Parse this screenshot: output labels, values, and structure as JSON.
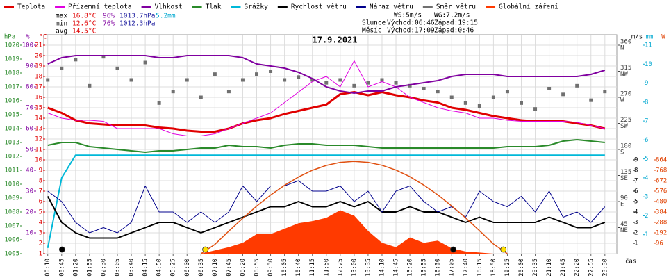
{
  "chart_data": {
    "type": "line",
    "title": "17.9.2021",
    "x_label": "čas",
    "categories": [
      "00:10",
      "00:45",
      "01:20",
      "01:55",
      "02:30",
      "03:05",
      "03:40",
      "04:15",
      "04:50",
      "05:25",
      "06:00",
      "06:35",
      "07:10",
      "07:45",
      "08:20",
      "08:55",
      "09:30",
      "10:05",
      "10:40",
      "11:15",
      "11:50",
      "12:25",
      "13:00",
      "13:35",
      "14:10",
      "14:45",
      "15:20",
      "15:55",
      "16:30",
      "17:05",
      "17:40",
      "18:15",
      "18:50",
      "19:25",
      "20:00",
      "20:35",
      "21:10",
      "21:45",
      "22:20",
      "22:55",
      "23:30"
    ],
    "grid": true,
    "axes": {
      "hpa": {
        "label": "hPa",
        "color": "#2a8a2a",
        "lim": [
          1005,
          1020
        ],
        "ticks": [
          1005,
          1006,
          1007,
          1008,
          1009,
          1010,
          1011,
          1012,
          1013,
          1014,
          1015,
          1016,
          1017,
          1018,
          1019,
          1020
        ]
      },
      "pct": {
        "label": "%",
        "color": "#8000a0",
        "lim": [
          0,
          100
        ],
        "ticks": [
          10,
          20,
          30,
          40,
          50,
          60,
          70,
          80,
          90,
          100
        ]
      },
      "temp": {
        "label": "°C",
        "color": "#e00000",
        "lim": [
          1,
          21
        ],
        "ticks": [
          1,
          2,
          3,
          4,
          5,
          6,
          7,
          8,
          9,
          10,
          11,
          12,
          13,
          14,
          15,
          16,
          17,
          18,
          19,
          20,
          21
        ]
      },
      "deg": {
        "color": "#404040",
        "lim": [
          0,
          360
        ],
        "ticks": [
          {
            "value": 45,
            "label": "45",
            "dir": "NE"
          },
          {
            "value": 90,
            "label": "90",
            "dir": "E"
          },
          {
            "value": 135,
            "label": "135",
            "dir": "SE"
          },
          {
            "value": 180,
            "label": "180",
            "dir": "S"
          },
          {
            "value": 225,
            "label": "225",
            "dir": "SW"
          },
          {
            "value": 270,
            "label": "270",
            "dir": "W"
          },
          {
            "value": 315,
            "label": "315",
            "dir": "NW"
          },
          {
            "value": 360,
            "label": "360",
            "dir": "N"
          }
        ]
      },
      "ms": {
        "label": "m/s",
        "color": "#000000",
        "lim": [
          0,
          20
        ],
        "ticks": [
          1,
          2,
          3,
          4,
          5,
          6,
          7,
          8,
          9
        ]
      },
      "mm": {
        "label": "mm",
        "color": "#00a8d0",
        "lim": [
          0,
          11
        ],
        "ticks": [
          1,
          2,
          3,
          4,
          5,
          6,
          7,
          8,
          9,
          10,
          11
        ]
      },
      "w": {
        "label": "W",
        "color": "#e04000",
        "lim": [
          0,
          1920
        ],
        "ticks": [
          96,
          192,
          288,
          384,
          480,
          576,
          672,
          768,
          864
        ]
      }
    },
    "series": [
      {
        "name": "Teplota",
        "color": "#e00000",
        "axis": "temp",
        "mark": "line",
        "width": 3,
        "values": [
          15,
          14.5,
          13.8,
          13.5,
          13.4,
          13.3,
          13.3,
          13.3,
          13.1,
          13,
          12.8,
          12.7,
          12.7,
          13,
          13.5,
          13.8,
          14,
          14.4,
          14.7,
          15,
          15.3,
          16.3,
          16.5,
          16.2,
          16.5,
          16.2,
          16,
          15.7,
          15.5,
          15,
          14.8,
          14.5,
          14.2,
          14,
          13.8,
          13.7,
          13.7,
          13.7,
          13.5,
          13.3,
          13
        ]
      },
      {
        "name": "Přízemní teplota",
        "color": "#e000e0",
        "axis": "temp",
        "mark": "line",
        "width": 1,
        "values": [
          14.5,
          14,
          13.8,
          13.8,
          13.7,
          13,
          13,
          13,
          13,
          12.5,
          12.3,
          12.3,
          12.5,
          13,
          13.5,
          14,
          14.5,
          15.5,
          16.5,
          17.5,
          18,
          17,
          19.5,
          17,
          17.5,
          17,
          16,
          15.5,
          15,
          14.7,
          14.5,
          14,
          14,
          13.8,
          13.7,
          13.7,
          13.7,
          13.7,
          13.6,
          13.3,
          13
        ]
      },
      {
        "name": "Vlhkost",
        "color": "#8000a0",
        "axis": "pct",
        "mark": "line",
        "width": 2,
        "values": [
          91,
          94,
          95,
          95,
          95,
          95,
          95,
          95,
          94,
          94,
          95,
          95,
          95,
          95,
          94,
          91,
          90,
          89,
          87,
          84,
          80,
          78,
          77,
          78,
          78,
          80,
          81,
          82,
          83,
          85,
          86,
          86,
          86,
          85,
          85,
          85,
          85,
          85,
          85,
          86,
          88
        ]
      },
      {
        "name": "Tlak",
        "color": "#2a8a2a",
        "axis": "hpa",
        "mark": "line",
        "width": 2,
        "values": [
          1012.8,
          1013,
          1013,
          1012.7,
          1012.6,
          1012.5,
          1012.4,
          1012.3,
          1012.4,
          1012.4,
          1012.5,
          1012.6,
          1012.6,
          1012.8,
          1012.7,
          1012.7,
          1012.6,
          1012.8,
          1012.9,
          1012.9,
          1012.8,
          1012.8,
          1012.8,
          1012.7,
          1012.6,
          1012.6,
          1012.6,
          1012.6,
          1012.6,
          1012.6,
          1012.6,
          1012.6,
          1012.6,
          1012.7,
          1012.7,
          1012.7,
          1012.8,
          1013.1,
          1013.2,
          1013.1,
          1013
        ]
      },
      {
        "name": "Srážky",
        "color": "#00b8d8",
        "axis": "mm",
        "mark": "line",
        "width": 2,
        "values": [
          0.3,
          4,
          5.2,
          5.2,
          5.2,
          5.2,
          5.2,
          5.2,
          5.2,
          5.2,
          5.2,
          5.2,
          5.2,
          5.2,
          5.2,
          5.2,
          5.2,
          5.2,
          5.2,
          5.2,
          5.2,
          5.2,
          5.2,
          5.2,
          5.2,
          5.2,
          5.2,
          5.2,
          5.2,
          5.2,
          5.2,
          5.2,
          5.2,
          5.2,
          5.2,
          5.2,
          5.2,
          5.2,
          5.2,
          5.2,
          5.2
        ]
      },
      {
        "name": "Rychlost větru",
        "color": "#000000",
        "axis": "ms",
        "mark": "line",
        "width": 2,
        "values": [
          5.5,
          3,
          2,
          1.5,
          1.5,
          1.5,
          2,
          2.5,
          3,
          3,
          2.5,
          2,
          2.5,
          3,
          3.5,
          4,
          4.5,
          4.5,
          5,
          4.5,
          4.5,
          5,
          4.5,
          5,
          4,
          4,
          4.5,
          4,
          4,
          3.5,
          3,
          3.5,
          3,
          3,
          3,
          3,
          3.5,
          3,
          2.5,
          2.5,
          3
        ]
      },
      {
        "name": "Náraz větru",
        "color": "#00008c",
        "axis": "ms",
        "mark": "line",
        "width": 1,
        "values": [
          6,
          5,
          3,
          2,
          2.5,
          2,
          3,
          6.5,
          4,
          4,
          3,
          4,
          3,
          4,
          6.5,
          5,
          6.5,
          6.5,
          7,
          6,
          6,
          6.5,
          5,
          6,
          4,
          6,
          6.5,
          5,
          4,
          4.5,
          3.5,
          6,
          5,
          4.5,
          5.5,
          4,
          6,
          3.5,
          4,
          3,
          4.5
        ]
      },
      {
        "name": "Směr větru",
        "color": "#707070",
        "axis": "deg",
        "mark": "points",
        "values": [
          300,
          320,
          335,
          290,
          340,
          320,
          300,
          330,
          260,
          280,
          300,
          270,
          310,
          280,
          300,
          310,
          315,
          300,
          305,
          300,
          295,
          300,
          290,
          295,
          300,
          295,
          290,
          285,
          280,
          270,
          260,
          255,
          270,
          280,
          260,
          250,
          285,
          275,
          290,
          265,
          280
        ]
      },
      {
        "name": "Globální záření",
        "color": "#ff3a00",
        "axis": "w",
        "mark": "area",
        "values": [
          0,
          0,
          0,
          0,
          0,
          0,
          0,
          0,
          0,
          0,
          0,
          0,
          30,
          60,
          100,
          180,
          180,
          230,
          280,
          300,
          330,
          400,
          350,
          210,
          100,
          60,
          150,
          100,
          120,
          50,
          20,
          10,
          0,
          0,
          0,
          0,
          0,
          0,
          0,
          0,
          0
        ]
      }
    ],
    "clear_sky": {
      "color": "#e05010",
      "axis": "w",
      "values": [
        null,
        null,
        null,
        null,
        null,
        null,
        null,
        null,
        null,
        null,
        null,
        0,
        86,
        208,
        326,
        438,
        540,
        630,
        706,
        768,
        813,
        841,
        850,
        841,
        814,
        770,
        709,
        632,
        542,
        440,
        330,
        212,
        89,
        0,
        null,
        null,
        null,
        null,
        null,
        null,
        null
      ]
    },
    "markers": [
      {
        "time": "00:46",
        "color": "#000000"
      },
      {
        "time": "06:46",
        "color": "#ffe000"
      },
      {
        "time": "17:09",
        "color": "#000000"
      },
      {
        "time": "19:15",
        "color": "#ffe000"
      }
    ],
    "stats": [
      {
        "label": "max",
        "values": [
          "16.8°C",
          "96%",
          "1013.7hPa",
          "5.2mm"
        ]
      },
      {
        "label": "min",
        "values": [
          "12.6°C",
          "76%",
          "1012.3hPa"
        ]
      },
      {
        "label": "avg",
        "values": [
          "14.5°C"
        ]
      }
    ],
    "wind": [
      "WS:5m/s",
      "WG:7.2m/s"
    ],
    "sun": [
      "Slunce",
      "Východ:06:46",
      "Západ:19:15"
    ],
    "moon": [
      "Měsíc",
      "Východ:17:09",
      "Západ:0:46"
    ]
  }
}
